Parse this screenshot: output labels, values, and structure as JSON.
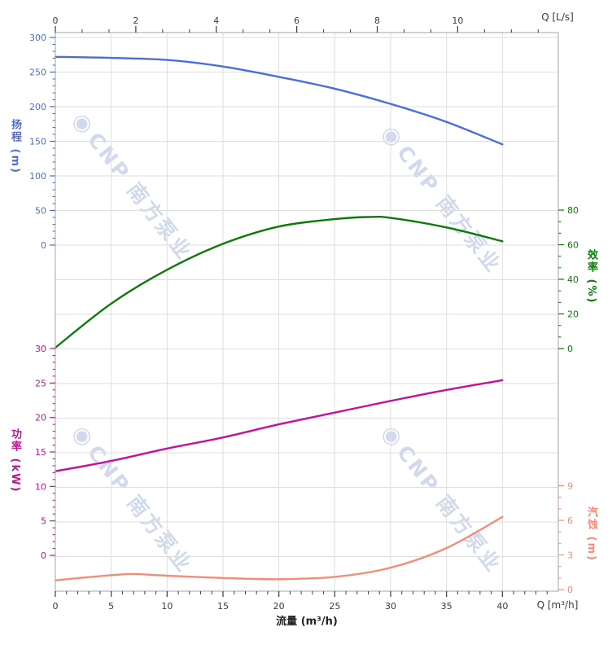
{
  "watermark": {
    "logo_glyph": "◉",
    "text": "CNP 南方泵业"
  },
  "chart_data": {
    "type": "line",
    "title": "",
    "grid": true,
    "legend": false,
    "axes": {
      "flow_bottom": {
        "title": "流量 (m³/h)",
        "unit_label": "Q [m³/h]",
        "range": [
          0,
          45
        ],
        "major_ticks": [
          0,
          5,
          10,
          15,
          20,
          25,
          30,
          35,
          40
        ],
        "minor_step": 1,
        "color": "#3a3a3a"
      },
      "flow_top": {
        "unit_label": "Q [L/s]",
        "major_ticks": [
          0,
          2,
          4,
          6,
          8,
          10
        ],
        "minor_step": 0.66667,
        "m3h_per_unit": 3.6,
        "color": "#3a3a3a"
      },
      "head": {
        "title": "扬程 (m)",
        "side": "left",
        "range": [
          0,
          300
        ],
        "major_ticks": [
          300,
          250,
          200,
          150,
          100,
          50,
          0
        ],
        "minor_step": 10,
        "color": "#4a6de2"
      },
      "power": {
        "title": "功率 (kW)",
        "side": "left",
        "range": [
          0,
          30
        ],
        "major_ticks": [
          30,
          25,
          20,
          15,
          10,
          5,
          0
        ],
        "minor_step": 1,
        "color": "#c6109c"
      },
      "efficiency": {
        "title": "效率 (%)",
        "side": "right",
        "range": [
          0,
          80
        ],
        "major_ticks": [
          80,
          60,
          40,
          20,
          0
        ],
        "minor_step": 6.66667,
        "color": "#0a7c0a"
      },
      "npsh": {
        "title": "汽蚀 (m)",
        "side": "right",
        "range": [
          0,
          9
        ],
        "major_ticks": [
          9,
          6,
          3,
          0
        ],
        "minor_step": 1,
        "color": "#f68c77"
      }
    },
    "series": [
      {
        "name": "head",
        "axis": "head",
        "color": "#4a6de2",
        "q_m3h": [
          0,
          5,
          10,
          15,
          20,
          25,
          30,
          35,
          40
        ],
        "values": [
          272,
          270.5,
          267.5,
          258,
          243,
          226,
          204,
          178,
          145.5
        ]
      },
      {
        "name": "efficiency",
        "axis": "efficiency",
        "color": "#0a7c0a",
        "q_m3h": [
          0,
          5,
          10,
          15,
          20,
          25,
          28,
          30,
          35,
          40
        ],
        "values": [
          0.5,
          26,
          45.5,
          60.5,
          70.5,
          74.8,
          76,
          75.5,
          70,
          62
        ]
      },
      {
        "name": "power",
        "axis": "power",
        "color": "#c6109c",
        "q_m3h": [
          0,
          5,
          10,
          15,
          20,
          25,
          30,
          35,
          40
        ],
        "values": [
          12.2,
          13.7,
          15.5,
          17.1,
          19,
          20.7,
          22.4,
          24,
          25.4
        ]
      },
      {
        "name": "npsh",
        "axis": "npsh",
        "color": "#f68c77",
        "q_m3h": [
          0,
          5,
          7,
          10,
          15,
          20,
          25,
          30,
          35,
          40
        ],
        "values": [
          0.8,
          1.25,
          1.35,
          1.2,
          1.0,
          0.9,
          1.1,
          1.9,
          3.6,
          6.3
        ]
      }
    ]
  }
}
